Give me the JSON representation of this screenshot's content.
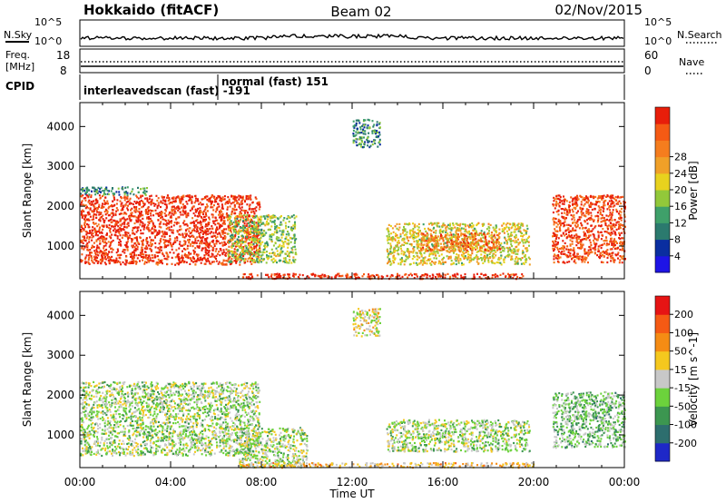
{
  "header": {
    "title_left": "Hokkaido (fitACF)",
    "title_center": "Beam 02",
    "title_right": "02/Nov/2015"
  },
  "noise_panel": {
    "left_label": "N.Sky",
    "right_label": "N.Search",
    "left_ticks": [
      "10^5",
      "10^0"
    ],
    "right_ticks": [
      "10^5",
      "10^0"
    ]
  },
  "freq_panel": {
    "left_label_1": "Freq.",
    "left_label_2": "[MHz]",
    "left_ticks": [
      "18",
      "8"
    ],
    "right_label": "Nave",
    "right_ticks": [
      "60",
      "0"
    ]
  },
  "cpid_panel": {
    "label": "CPID",
    "segment_1": "interleavedscan (fast) -191",
    "segment_2": "normal (fast) 151"
  },
  "chart_data": [
    {
      "type": "heatmap",
      "title": "",
      "ylabel": "Slant Range [km]",
      "xlabel": "",
      "y_ticks": [
        1000,
        2000,
        3000,
        4000
      ],
      "ylim": [
        180,
        4600
      ],
      "xlim_hours": [
        0,
        24
      ],
      "colorbar": {
        "label": "Power [dB]",
        "ticks": [
          "4",
          "8",
          "12",
          "16",
          "20",
          "24",
          "28"
        ],
        "colors": [
          "#1e14e6",
          "#0a2ea0",
          "#2b7a6e",
          "#3fa06a",
          "#92c83a",
          "#e8d21e",
          "#f0a028",
          "#f57d1e",
          "#f55a14",
          "#e81e0a"
        ]
      },
      "regions": [
        {
          "t0": 0.0,
          "t1": 7.9,
          "r0": 550,
          "r1": 2300,
          "level": 0.95
        },
        {
          "t0": 0.0,
          "t1": 3.0,
          "r0": 2300,
          "r1": 2500,
          "level": 0.3
        },
        {
          "t0": 6.5,
          "t1": 9.5,
          "r0": 600,
          "r1": 1800,
          "level": 0.45
        },
        {
          "t0": 12.0,
          "t1": 13.2,
          "r0": 3500,
          "r1": 4200,
          "level": 0.3
        },
        {
          "t0": 13.5,
          "t1": 19.8,
          "r0": 550,
          "r1": 1600,
          "level": 0.55
        },
        {
          "t0": 15.0,
          "t1": 18.5,
          "r0": 900,
          "r1": 1350,
          "level": 0.78
        },
        {
          "t0": 20.8,
          "t1": 24.0,
          "r0": 600,
          "r1": 2300,
          "level": 0.9
        },
        {
          "t0": 7.0,
          "t1": 19.5,
          "r0": 200,
          "r1": 330,
          "level": 0.95
        }
      ]
    },
    {
      "type": "heatmap",
      "title": "",
      "ylabel": "Slant Range [km]",
      "xlabel": "Time UT",
      "x_ticks": [
        "00:00",
        "04:00",
        "08:00",
        "12:00",
        "16:00",
        "20:00",
        "00:00"
      ],
      "y_ticks": [
        1000,
        2000,
        3000,
        4000
      ],
      "ylim": [
        180,
        4600
      ],
      "xlim_hours": [
        0,
        24
      ],
      "colorbar": {
        "label": "Velocity [m s^-1]",
        "ticks": [
          "200",
          "100",
          "50",
          "15",
          "-15",
          "-50",
          "-100",
          "-200"
        ],
        "colors": [
          "#1e28c8",
          "#2d6e6e",
          "#3c9650",
          "#6cd23c",
          "#c8c8c8",
          "#f5c81e",
          "#f58c14",
          "#f55a14",
          "#e61414"
        ]
      },
      "regions": [
        {
          "t0": 0.0,
          "t1": 7.9,
          "r0": 500,
          "r1": 2350,
          "level": 0.45
        },
        {
          "t0": 7.0,
          "t1": 10.0,
          "r0": 200,
          "r1": 1200,
          "level": 0.45
        },
        {
          "t0": 12.0,
          "t1": 13.2,
          "r0": 3500,
          "r1": 4200,
          "level": 0.55
        },
        {
          "t0": 13.5,
          "t1": 19.8,
          "r0": 600,
          "r1": 1400,
          "level": 0.45
        },
        {
          "t0": 20.8,
          "t1": 24.0,
          "r0": 700,
          "r1": 2100,
          "level": 0.38
        },
        {
          "t0": 7.0,
          "t1": 20.0,
          "r0": 200,
          "r1": 320,
          "level": 0.62
        }
      ]
    }
  ]
}
